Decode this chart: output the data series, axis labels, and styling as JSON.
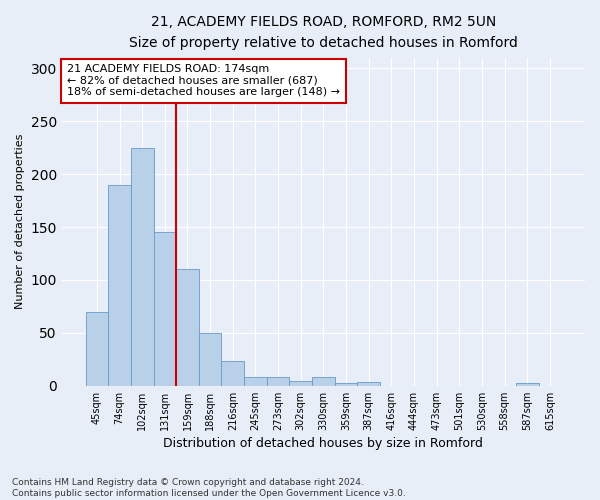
{
  "title_line1": "21, ACADEMY FIELDS ROAD, ROMFORD, RM2 5UN",
  "title_line2": "Size of property relative to detached houses in Romford",
  "xlabel": "Distribution of detached houses by size in Romford",
  "ylabel": "Number of detached properties",
  "bar_labels": [
    "45sqm",
    "74sqm",
    "102sqm",
    "131sqm",
    "159sqm",
    "188sqm",
    "216sqm",
    "245sqm",
    "273sqm",
    "302sqm",
    "330sqm",
    "359sqm",
    "387sqm",
    "416sqm",
    "444sqm",
    "473sqm",
    "501sqm",
    "530sqm",
    "558sqm",
    "587sqm",
    "615sqm"
  ],
  "bar_values": [
    70,
    190,
    225,
    145,
    110,
    50,
    23,
    8,
    8,
    5,
    8,
    3,
    4,
    0,
    0,
    0,
    0,
    0,
    0,
    3,
    0
  ],
  "bar_color": "#b8d0e8",
  "bar_edge_color": "#6699cc",
  "vline_color": "#cc0000",
  "vline_x_index": 3.5,
  "annotation_text": "21 ACADEMY FIELDS ROAD: 174sqm\n← 82% of detached houses are smaller (687)\n18% of semi-detached houses are larger (148) →",
  "annotation_box_color": "#ffffff",
  "annotation_box_edge": "#cc0000",
  "ylim": [
    0,
    310
  ],
  "yticks": [
    0,
    50,
    100,
    150,
    200,
    250,
    300
  ],
  "footnote": "Contains HM Land Registry data © Crown copyright and database right 2024.\nContains public sector information licensed under the Open Government Licence v3.0.",
  "bg_color": "#e8eef8",
  "plot_bg_color": "#e8eef8",
  "grid_color": "#ffffff",
  "title_fontsize": 10,
  "subtitle_fontsize": 9,
  "ylabel_fontsize": 8,
  "xlabel_fontsize": 9,
  "tick_fontsize": 7,
  "annot_fontsize": 8
}
